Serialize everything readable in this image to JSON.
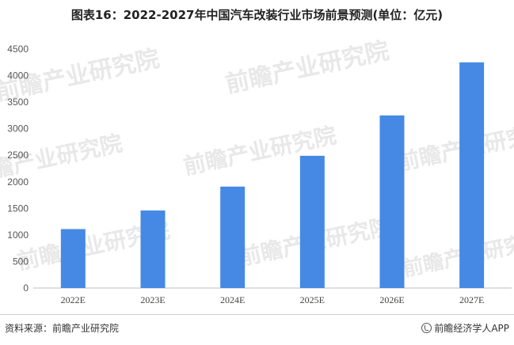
{
  "chart_data": {
    "type": "bar",
    "title": "图表16：2022-2027年中国汽车改装行业市场前景预测(单位：亿元)",
    "categories": [
      "2022E",
      "2023E",
      "2024E",
      "2025E",
      "2026E",
      "2027E"
    ],
    "values": [
      1110,
      1460,
      1910,
      2490,
      3250,
      4250
    ],
    "yticks": [
      0,
      500,
      1000,
      1500,
      2000,
      2500,
      3000,
      3500,
      4000,
      4500
    ],
    "ylim": [
      0,
      4500
    ],
    "xlabel": "",
    "ylabel": "",
    "grid": false,
    "legend": "none",
    "bar_color": "#4589e4"
  },
  "footer": {
    "source": "资料来源：前瞻产业研究院",
    "brand": "前瞻经济学人APP",
    "brand_icon": "qianzhan-logo-icon"
  },
  "watermark": {
    "text": "前瞻产业研究院"
  }
}
